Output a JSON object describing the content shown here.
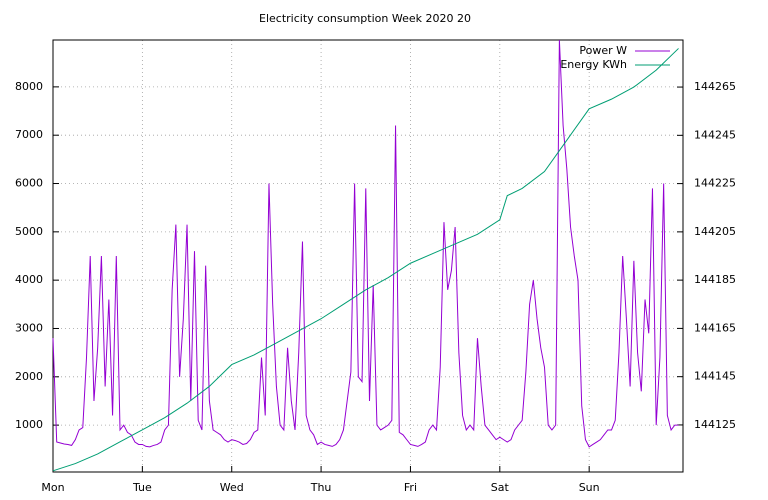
{
  "chart_data": {
    "type": "line",
    "title": "Electricity consumption Week 2020 20",
    "xlim": [
      0,
      169.2
    ],
    "xticks": [
      {
        "value": 0,
        "label": "Mon"
      },
      {
        "value": 24,
        "label": "Tue"
      },
      {
        "value": 48,
        "label": "Wed"
      },
      {
        "value": 72,
        "label": "Thu"
      },
      {
        "value": 96,
        "label": "Fri"
      },
      {
        "value": 120,
        "label": "Sat"
      },
      {
        "value": 144,
        "label": "Sun"
      }
    ],
    "ylim": [
      30,
      8970
    ],
    "yticks": [
      1000,
      2000,
      3000,
      4000,
      5000,
      6000,
      7000,
      8000
    ],
    "y2lim": [
      144105.5,
      144284.5
    ],
    "y2ticks": [
      144125,
      144145,
      144165,
      144185,
      144205,
      144225,
      144245,
      144265
    ],
    "grid": true,
    "legend": "top-right",
    "x": [
      0,
      1,
      2,
      3,
      4,
      5,
      6,
      7,
      8,
      9,
      10,
      11,
      12,
      13,
      14,
      15,
      16,
      17,
      18,
      19,
      20,
      21,
      22,
      23,
      24,
      25,
      26,
      27,
      28,
      29,
      30,
      31,
      32,
      33,
      34,
      35,
      36,
      37,
      38,
      39,
      40,
      41,
      42,
      43,
      44,
      45,
      46,
      47,
      48,
      49,
      50,
      51,
      52,
      53,
      54,
      55,
      56,
      57,
      58,
      59,
      60,
      61,
      62,
      63,
      64,
      65,
      66,
      67,
      68,
      69,
      70,
      71,
      72,
      73,
      74,
      75,
      76,
      77,
      78,
      79,
      80,
      81,
      82,
      83,
      84,
      85,
      86,
      87,
      88,
      89,
      90,
      91,
      92,
      93,
      94,
      95,
      96,
      97,
      98,
      99,
      100,
      101,
      102,
      103,
      104,
      105,
      106,
      107,
      108,
      109,
      110,
      111,
      112,
      113,
      114,
      115,
      116,
      117,
      118,
      119,
      120,
      121,
      122,
      123,
      124,
      125,
      126,
      127,
      128,
      129,
      130,
      131,
      132,
      133,
      134,
      135,
      136,
      137,
      138,
      139,
      140,
      141,
      142,
      143,
      144,
      145,
      146,
      147,
      148,
      149,
      150,
      151,
      152,
      153,
      154,
      155,
      156,
      157,
      158,
      159,
      160,
      161,
      162,
      163,
      164,
      165,
      166,
      167,
      168
    ],
    "series": [
      {
        "name": "Power W",
        "color": "#9400d3",
        "values": [
          2800,
          650,
          630,
          610,
          600,
          580,
          700,
          900,
          950,
          2400,
          4500,
          1500,
          2600,
          4500,
          1800,
          3600,
          1200,
          4500,
          900,
          1000,
          850,
          800,
          650,
          600,
          600,
          560,
          550,
          580,
          600,
          650,
          900,
          1000,
          3800,
          5150,
          2000,
          3200,
          5150,
          1500,
          4600,
          1100,
          900,
          4300,
          1500,
          900,
          850,
          800,
          700,
          650,
          700,
          680,
          650,
          600,
          620,
          700,
          850,
          900,
          2400,
          1200,
          6000,
          3500,
          1800,
          1000,
          900,
          2600,
          1500,
          900,
          2500,
          4800,
          1200,
          900,
          800,
          600,
          650,
          600,
          580,
          560,
          600,
          700,
          900,
          1500,
          2100,
          6000,
          2000,
          1900,
          5900,
          1500,
          3900,
          1000,
          900,
          950,
          1000,
          1100,
          7200,
          850,
          800,
          700,
          600,
          580,
          560,
          600,
          650,
          900,
          1000,
          900,
          2200,
          5200,
          3800,
          4200,
          5100,
          2500,
          1200,
          900,
          1000,
          900,
          2800,
          1800,
          1000,
          900,
          800,
          700,
          750,
          700,
          650,
          700,
          900,
          1000,
          1100,
          2100,
          3500,
          4000,
          3200,
          2600,
          2200,
          1000,
          900,
          1000,
          8970,
          7200,
          6300,
          5100,
          4500,
          4000,
          1400,
          700,
          550,
          600,
          650,
          700,
          800,
          900,
          900,
          1100,
          2500,
          4500,
          3200,
          1800,
          4400,
          2500,
          1700,
          3600,
          2900,
          5900,
          1000,
          2400,
          6000,
          1200,
          900,
          1000,
          1000
        ]
      },
      {
        "name": "Energy KWh",
        "color": "#009e73",
        "axis": "y2",
        "x": [
          0,
          6,
          12,
          18,
          24,
          30,
          36,
          42,
          48,
          54,
          60,
          66,
          72,
          78,
          84,
          90,
          96,
          102,
          108,
          114,
          120,
          122,
          126,
          132,
          138,
          144,
          150,
          156,
          162,
          168
        ],
        "values": [
          144106,
          144109,
          144113,
          144118,
          144123,
          144128,
          144134,
          144141,
          144150,
          144154,
          144159,
          144164,
          144169,
          144175,
          144181,
          144186,
          144192,
          144196,
          144200,
          144204,
          144210,
          144220,
          144223,
          144230,
          144243,
          144256,
          144260,
          144265,
          144272,
          144281
        ]
      }
    ]
  }
}
